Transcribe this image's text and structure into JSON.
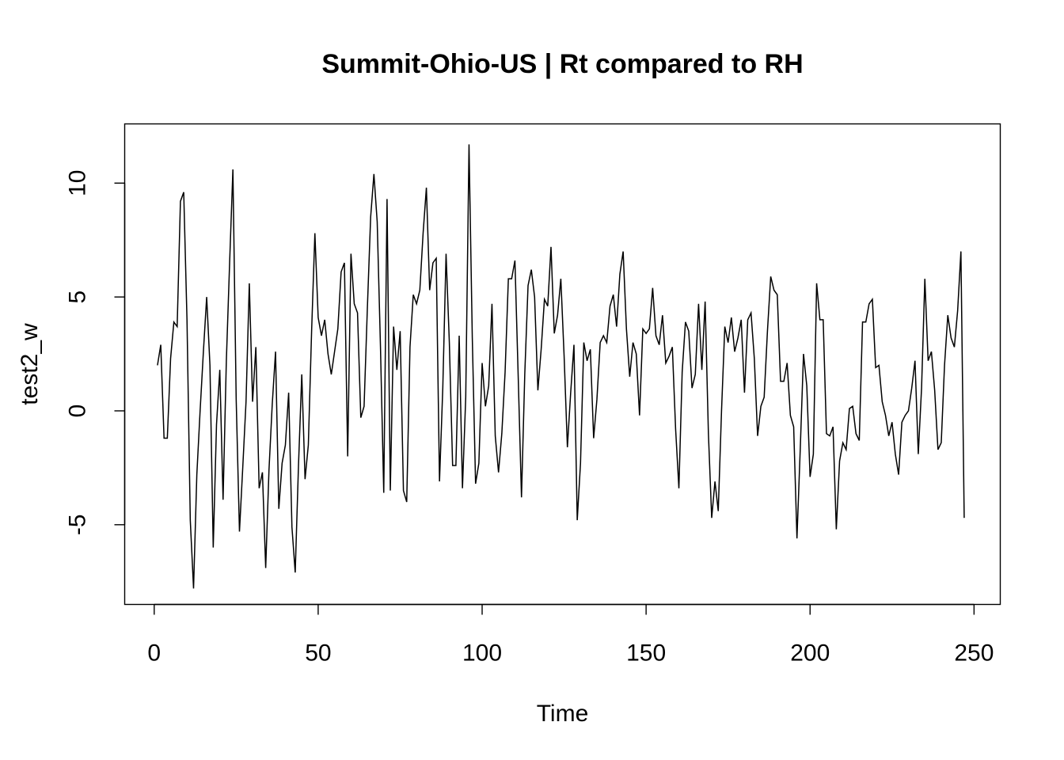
{
  "chart_data": {
    "type": "line",
    "title": "Summit-Ohio-US | Rt compared to RH",
    "xlabel": "Time",
    "ylabel": "test2_w",
    "xlim": [
      -9,
      258
    ],
    "ylim": [
      -8.5,
      12.6
    ],
    "xticks": [
      0,
      50,
      100,
      150,
      200,
      250
    ],
    "yticks": [
      -5,
      0,
      5,
      10
    ],
    "grid": false,
    "color": "#000000",
    "x_start": 1,
    "y": [
      2.0,
      2.9,
      -1.2,
      -1.2,
      2.3,
      3.9,
      3.7,
      9.2,
      9.6,
      4.0,
      -4.8,
      -7.8,
      -2.8,
      0.0,
      2.6,
      5.0,
      2.0,
      -6.0,
      -0.6,
      1.8,
      -3.9,
      2.2,
      6.5,
      10.6,
      0.5,
      -5.3,
      -2.5,
      0.4,
      5.6,
      0.4,
      2.8,
      -3.4,
      -2.7,
      -6.9,
      -2.6,
      0.3,
      2.6,
      -4.3,
      -2.3,
      -1.5,
      0.8,
      -5.1,
      -7.1,
      -2.4,
      1.6,
      -3.0,
      -1.5,
      3.5,
      7.8,
      4.1,
      3.3,
      4.0,
      2.5,
      1.6,
      2.6,
      3.6,
      6.1,
      6.5,
      -2.0,
      6.9,
      4.7,
      4.3,
      -0.3,
      0.2,
      4.5,
      8.5,
      10.4,
      8.3,
      2.8,
      -3.6,
      9.3,
      -3.5,
      3.7,
      1.8,
      3.5,
      -3.5,
      -4.0,
      2.8,
      5.1,
      4.7,
      5.3,
      7.8,
      9.8,
      5.3,
      6.5,
      6.7,
      -3.1,
      1.0,
      6.9,
      3.0,
      -2.4,
      -2.4,
      3.3,
      -3.4,
      0.6,
      11.7,
      3.2,
      -3.2,
      -2.3,
      2.1,
      0.2,
      1.1,
      4.7,
      -1.1,
      -2.7,
      -1.0,
      1.7,
      5.8,
      5.8,
      6.6,
      1.5,
      -3.8,
      1.6,
      5.5,
      6.2,
      5.0,
      0.9,
      2.7,
      4.9,
      4.6,
      7.2,
      3.4,
      4.2,
      5.8,
      2.4,
      -1.6,
      0.8,
      2.9,
      -4.8,
      -2.3,
      3.0,
      2.2,
      2.7,
      -1.2,
      0.5,
      3.0,
      3.3,
      3.0,
      4.6,
      5.1,
      3.7,
      6.0,
      7.0,
      3.6,
      1.5,
      3.0,
      2.5,
      -0.2,
      3.6,
      3.4,
      3.6,
      5.4,
      3.3,
      2.9,
      4.2,
      2.1,
      2.4,
      2.8,
      -0.8,
      -3.4,
      1.7,
      3.9,
      3.5,
      1.0,
      1.6,
      4.7,
      1.8,
      4.8,
      -1.0,
      -4.7,
      -3.1,
      -4.4,
      0.0,
      3.7,
      3.0,
      4.1,
      2.6,
      3.2,
      4.0,
      0.8,
      4.0,
      4.3,
      2.3,
      -1.1,
      0.2,
      0.6,
      3.5,
      5.9,
      5.3,
      5.1,
      1.3,
      1.3,
      2.1,
      -0.2,
      -0.7,
      -5.6,
      -1.7,
      2.5,
      1.1,
      -2.9,
      -1.9,
      5.6,
      4.0,
      4.0,
      -1.0,
      -1.1,
      -0.7,
      -5.2,
      -2.2,
      -1.4,
      -1.7,
      0.1,
      0.2,
      -1.0,
      -1.3,
      3.9,
      3.9,
      4.7,
      4.9,
      1.9,
      2.0,
      0.4,
      -0.2,
      -1.1,
      -0.5,
      -1.9,
      -2.8,
      -0.5,
      -0.2,
      0.0,
      1.0,
      2.2,
      -1.9,
      1.0,
      5.8,
      2.2,
      2.6,
      0.9,
      -1.7,
      -1.4,
      2.0,
      4.2,
      3.2,
      2.8,
      4.4,
      7.0,
      -4.7
    ]
  }
}
